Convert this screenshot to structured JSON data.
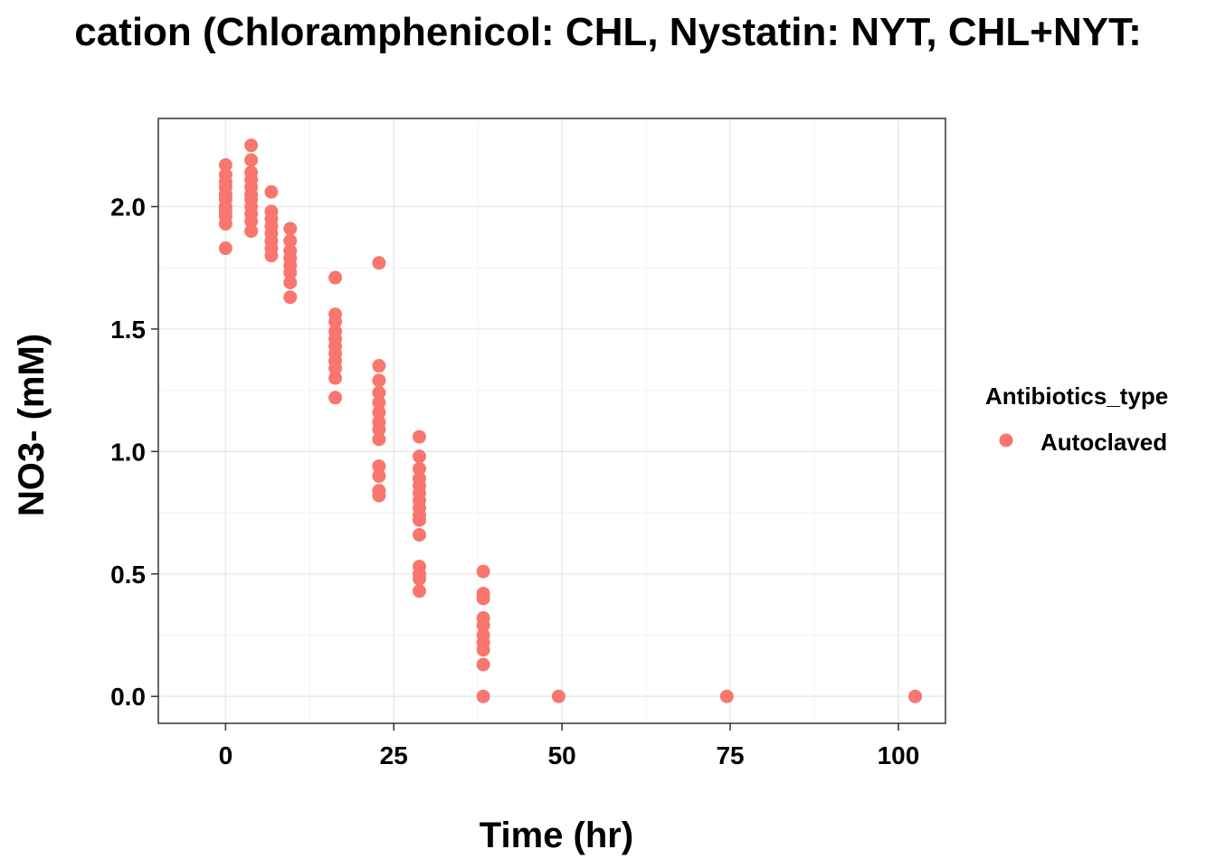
{
  "chart_data": {
    "type": "scatter",
    "title": "cation (Chloramphenicol: CHL, Nystatin: NYT, CHL+NYT:",
    "xlabel": "Time (hr)",
    "ylabel": "NO3- (mM)",
    "xlim": [
      -10,
      107
    ],
    "ylim": [
      -0.11,
      2.36
    ],
    "x_ticks": [
      0,
      25,
      50,
      75,
      100
    ],
    "y_ticks": [
      0.0,
      0.5,
      1.0,
      1.5,
      2.0
    ],
    "x_tick_labels": [
      "0",
      "25",
      "50",
      "75",
      "100"
    ],
    "y_tick_labels": [
      "0.0",
      "0.5",
      "1.0",
      "1.5",
      "2.0"
    ],
    "grid": true,
    "legend": {
      "title": "Antibiotics_type",
      "position": "right"
    },
    "series": [
      {
        "name": "Autoclaved",
        "color": "#F8766D",
        "points": [
          [
            0,
            2.17
          ],
          [
            0,
            2.13
          ],
          [
            0,
            2.1
          ],
          [
            0,
            2.08
          ],
          [
            0,
            2.05
          ],
          [
            0,
            2.03
          ],
          [
            0,
            2.0
          ],
          [
            0,
            1.98
          ],
          [
            0,
            1.96
          ],
          [
            0,
            1.93
          ],
          [
            0,
            1.83
          ],
          [
            3.8,
            2.25
          ],
          [
            3.8,
            2.19
          ],
          [
            3.8,
            2.14
          ],
          [
            3.8,
            2.11
          ],
          [
            3.8,
            2.08
          ],
          [
            3.8,
            2.05
          ],
          [
            3.8,
            2.03
          ],
          [
            3.8,
            2.0
          ],
          [
            3.8,
            1.97
          ],
          [
            3.8,
            1.94
          ],
          [
            3.8,
            1.9
          ],
          [
            6.8,
            2.06
          ],
          [
            6.8,
            1.98
          ],
          [
            6.8,
            1.95
          ],
          [
            6.8,
            1.92
          ],
          [
            6.8,
            1.89
          ],
          [
            6.8,
            1.86
          ],
          [
            6.8,
            1.83
          ],
          [
            6.8,
            1.8
          ],
          [
            9.6,
            1.91
          ],
          [
            9.6,
            1.86
          ],
          [
            9.6,
            1.82
          ],
          [
            9.6,
            1.79
          ],
          [
            9.6,
            1.76
          ],
          [
            9.6,
            1.73
          ],
          [
            9.6,
            1.69
          ],
          [
            9.6,
            1.63
          ],
          [
            16.3,
            1.71
          ],
          [
            16.3,
            1.56
          ],
          [
            16.3,
            1.53
          ],
          [
            16.3,
            1.49
          ],
          [
            16.3,
            1.46
          ],
          [
            16.3,
            1.43
          ],
          [
            16.3,
            1.4
          ],
          [
            16.3,
            1.37
          ],
          [
            16.3,
            1.34
          ],
          [
            16.3,
            1.3
          ],
          [
            16.3,
            1.22
          ],
          [
            22.8,
            1.77
          ],
          [
            22.8,
            1.35
          ],
          [
            22.8,
            1.29
          ],
          [
            22.8,
            1.24
          ],
          [
            22.8,
            1.2
          ],
          [
            22.8,
            1.16
          ],
          [
            22.8,
            1.12
          ],
          [
            22.8,
            1.09
          ],
          [
            22.8,
            1.05
          ],
          [
            22.8,
            0.94
          ],
          [
            22.8,
            0.9
          ],
          [
            22.8,
            0.84
          ],
          [
            22.8,
            0.82
          ],
          [
            28.8,
            1.06
          ],
          [
            28.8,
            0.98
          ],
          [
            28.8,
            0.93
          ],
          [
            28.8,
            0.89
          ],
          [
            28.8,
            0.86
          ],
          [
            28.8,
            0.83
          ],
          [
            28.8,
            0.8
          ],
          [
            28.8,
            0.77
          ],
          [
            28.8,
            0.74
          ],
          [
            28.8,
            0.72
          ],
          [
            28.8,
            0.66
          ],
          [
            28.8,
            0.53
          ],
          [
            28.8,
            0.5
          ],
          [
            28.8,
            0.48
          ],
          [
            28.8,
            0.43
          ],
          [
            38.3,
            0.51
          ],
          [
            38.3,
            0.42
          ],
          [
            38.3,
            0.4
          ],
          [
            38.3,
            0.32
          ],
          [
            38.3,
            0.29
          ],
          [
            38.3,
            0.25
          ],
          [
            38.3,
            0.22
          ],
          [
            38.3,
            0.19
          ],
          [
            38.3,
            0.13
          ],
          [
            38.3,
            0.0
          ],
          [
            49.5,
            0.0
          ],
          [
            74.5,
            0.0
          ],
          [
            102.5,
            0.0
          ]
        ]
      }
    ]
  }
}
